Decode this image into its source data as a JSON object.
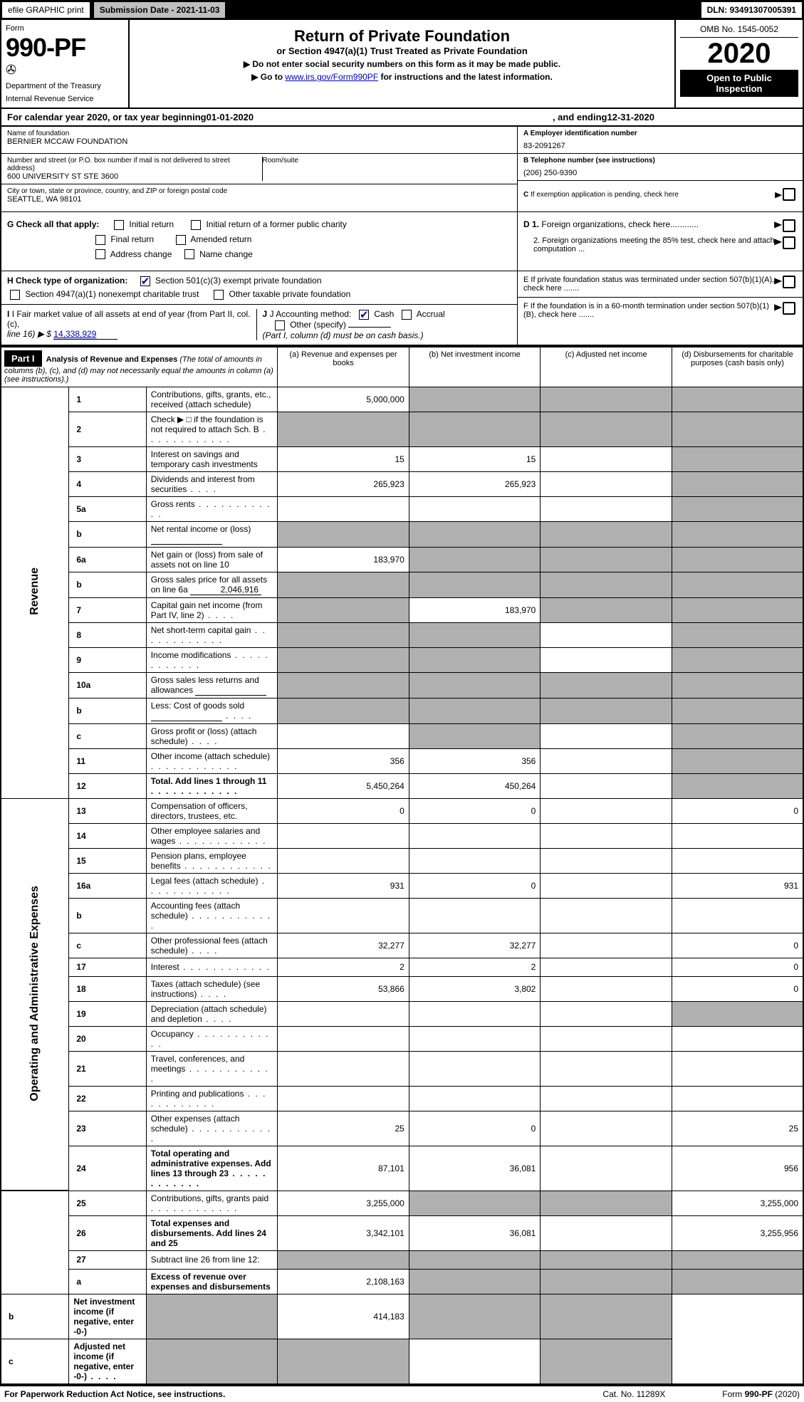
{
  "top": {
    "efile": "efile GRAPHIC print",
    "subdate_label": "Submission Date - ",
    "subdate": "2021-11-03",
    "dln_label": "DLN: ",
    "dln": "93491307005391"
  },
  "header": {
    "form_label": "Form",
    "form_num": "990-PF",
    "dept1": "Department of the Treasury",
    "dept2": "Internal Revenue Service",
    "title": "Return of Private Foundation",
    "subtitle": "or Section 4947(a)(1) Trust Treated as Private Foundation",
    "instr1a": "▶ Do not enter social security numbers on this form as it may be made public.",
    "instr2a": "▶ Go to ",
    "instr2link": "www.irs.gov/Form990PF",
    "instr2b": " for instructions and the latest information.",
    "omb": "OMB No. 1545-0052",
    "year": "2020",
    "open": "Open to Public Inspection"
  },
  "calyear": {
    "text1": "For calendar year 2020, or tax year beginning ",
    "begin": "01-01-2020",
    "text2": ", and ending ",
    "end": "12-31-2020"
  },
  "name": {
    "label": "Name of foundation",
    "value": "BERNIER MCCAW FOUNDATION",
    "street_label": "Number and street (or P.O. box number if mail is not delivered to street address)",
    "street": "600 UNIVERSITY ST STE 3600",
    "room_label": "Room/suite",
    "room": "",
    "city_label": "City or town, state or province, country, and ZIP or foreign postal code",
    "city": "SEATTLE, WA  98101",
    "a_label": "A Employer identification number",
    "a_value": "83-2091267",
    "b_label": "B Telephone number (see instructions)",
    "b_value": "(206) 250-9390",
    "c_label": "C If exemption application is pending, check here"
  },
  "checks": {
    "g_label": "G Check all that apply:",
    "g_initial": "Initial return",
    "g_initial_pub": "Initial return of a former public charity",
    "g_final": "Final return",
    "g_amended": "Amended return",
    "g_address": "Address change",
    "g_name": "Name change",
    "h_label": "H Check type of organization:",
    "h_501c3": "Section 501(c)(3) exempt private foundation",
    "h_4947": "Section 4947(a)(1) nonexempt charitable trust",
    "h_other": "Other taxable private foundation",
    "i_label": "I Fair market value of all assets at end of year (from Part II, col. (c),",
    "i_line": "line 16) ▶ $",
    "i_value": "14,338,929",
    "j_label": "J Accounting method:",
    "j_cash": "Cash",
    "j_accrual": "Accrual",
    "j_other": "Other (specify)",
    "j_note": "(Part I, column (d) must be on cash basis.)",
    "d1": "D 1. Foreign organizations, check here............",
    "d2": "2. Foreign organizations meeting the 85% test, check here and attach computation ...",
    "e": "E  If private foundation status was terminated under section 507(b)(1)(A), check here .......",
    "f": "F  If the foundation is in a 60-month termination under section 507(b)(1)(B), check here .......",
    "arrow": "▶"
  },
  "part1": {
    "label": "Part I",
    "title": "Analysis of Revenue and Expenses",
    "desc": "(The total of amounts in columns (b), (c), and (d) may not necessarily equal the amounts in column (a) (see instructions).)",
    "col_a": "(a) Revenue and expenses per books",
    "col_b": "(b) Net investment income",
    "col_c": "(c) Adjusted net income",
    "col_d": "(d) Disbursements for charitable purposes (cash basis only)",
    "vert_rev": "Revenue",
    "vert_exp": "Operating and Administrative Expenses"
  },
  "rows": [
    {
      "n": "1",
      "t": "Contributions, gifts, grants, etc., received (attach schedule)",
      "a": "5,000,000",
      "b": "gray",
      "c": "gray",
      "d": "gray"
    },
    {
      "n": "2",
      "t": "Check ▶ □ if the foundation is not required to attach Sch. B",
      "a": "gray",
      "b": "gray",
      "c": "gray",
      "d": "gray",
      "dots": true
    },
    {
      "n": "3",
      "t": "Interest on savings and temporary cash investments",
      "a": "15",
      "b": "15",
      "c": "",
      "d": "gray"
    },
    {
      "n": "4",
      "t": "Dividends and interest from securities",
      "a": "265,923",
      "b": "265,923",
      "c": "",
      "d": "gray",
      "dots": "short"
    },
    {
      "n": "5a",
      "t": "Gross rents",
      "a": "",
      "b": "",
      "c": "",
      "d": "gray",
      "dots": true
    },
    {
      "n": "b",
      "t": "Net rental income or (loss)",
      "a": "gray",
      "b": "gray",
      "c": "gray",
      "d": "gray",
      "inline": true
    },
    {
      "n": "6a",
      "t": "Net gain or (loss) from sale of assets not on line 10",
      "a": "183,970",
      "b": "gray",
      "c": "gray",
      "d": "gray"
    },
    {
      "n": "b",
      "t": "Gross sales price for all assets on line 6a",
      "a": "gray",
      "b": "gray",
      "c": "gray",
      "d": "gray",
      "inline_val": "2,046,916"
    },
    {
      "n": "7",
      "t": "Capital gain net income (from Part IV, line 2)",
      "a": "gray",
      "b": "183,970",
      "c": "gray",
      "d": "gray",
      "dots": "short"
    },
    {
      "n": "8",
      "t": "Net short-term capital gain",
      "a": "gray",
      "b": "gray",
      "c": "",
      "d": "gray",
      "dots": true
    },
    {
      "n": "9",
      "t": "Income modifications",
      "a": "gray",
      "b": "gray",
      "c": "",
      "d": "gray",
      "dots": true
    },
    {
      "n": "10a",
      "t": "Gross sales less returns and allowances",
      "a": "gray",
      "b": "gray",
      "c": "gray",
      "d": "gray",
      "inline": true
    },
    {
      "n": "b",
      "t": "Less: Cost of goods sold",
      "a": "gray",
      "b": "gray",
      "c": "gray",
      "d": "gray",
      "inline": true,
      "dots": "short"
    },
    {
      "n": "c",
      "t": "Gross profit or (loss) (attach schedule)",
      "a": "",
      "b": "gray",
      "c": "",
      "d": "gray",
      "dots": "short"
    },
    {
      "n": "11",
      "t": "Other income (attach schedule)",
      "a": "356",
      "b": "356",
      "c": "",
      "d": "gray",
      "dots": true
    },
    {
      "n": "12",
      "t": "Total. Add lines 1 through 11",
      "a": "5,450,264",
      "b": "450,264",
      "c": "",
      "d": "gray",
      "bold": true,
      "dots": true
    },
    {
      "n": "13",
      "t": "Compensation of officers, directors, trustees, etc.",
      "a": "0",
      "b": "0",
      "c": "",
      "d": "0"
    },
    {
      "n": "14",
      "t": "Other employee salaries and wages",
      "a": "",
      "b": "",
      "c": "",
      "d": "",
      "dots": true
    },
    {
      "n": "15",
      "t": "Pension plans, employee benefits",
      "a": "",
      "b": "",
      "c": "",
      "d": "",
      "dots": true
    },
    {
      "n": "16a",
      "t": "Legal fees (attach schedule)",
      "a": "931",
      "b": "0",
      "c": "",
      "d": "931",
      "dots": true
    },
    {
      "n": "b",
      "t": "Accounting fees (attach schedule)",
      "a": "",
      "b": "",
      "c": "",
      "d": "",
      "dots": true
    },
    {
      "n": "c",
      "t": "Other professional fees (attach schedule)",
      "a": "32,277",
      "b": "32,277",
      "c": "",
      "d": "0",
      "dots": "short"
    },
    {
      "n": "17",
      "t": "Interest",
      "a": "2",
      "b": "2",
      "c": "",
      "d": "0",
      "dots": true
    },
    {
      "n": "18",
      "t": "Taxes (attach schedule) (see instructions)",
      "a": "53,866",
      "b": "3,802",
      "c": "",
      "d": "0",
      "dots": "short"
    },
    {
      "n": "19",
      "t": "Depreciation (attach schedule) and depletion",
      "a": "",
      "b": "",
      "c": "",
      "d": "gray",
      "dots": "short"
    },
    {
      "n": "20",
      "t": "Occupancy",
      "a": "",
      "b": "",
      "c": "",
      "d": "",
      "dots": true
    },
    {
      "n": "21",
      "t": "Travel, conferences, and meetings",
      "a": "",
      "b": "",
      "c": "",
      "d": "",
      "dots": true
    },
    {
      "n": "22",
      "t": "Printing and publications",
      "a": "",
      "b": "",
      "c": "",
      "d": "",
      "dots": true
    },
    {
      "n": "23",
      "t": "Other expenses (attach schedule)",
      "a": "25",
      "b": "0",
      "c": "",
      "d": "25",
      "dots": true
    },
    {
      "n": "24",
      "t": "Total operating and administrative expenses. Add lines 13 through 23",
      "a": "87,101",
      "b": "36,081",
      "c": "",
      "d": "956",
      "bold": true,
      "dots": true,
      "tall": true
    },
    {
      "n": "25",
      "t": "Contributions, gifts, grants paid",
      "a": "3,255,000",
      "b": "gray",
      "c": "gray",
      "d": "3,255,000",
      "dots": true
    },
    {
      "n": "26",
      "t": "Total expenses and disbursements. Add lines 24 and 25",
      "a": "3,342,101",
      "b": "36,081",
      "c": "",
      "d": "3,255,956",
      "bold": true,
      "tall": true
    },
    {
      "n": "27",
      "t": "Subtract line 26 from line 12:",
      "a": "gray",
      "b": "gray",
      "c": "gray",
      "d": "gray"
    },
    {
      "n": "a",
      "t": "Excess of revenue over expenses and disbursements",
      "a": "2,108,163",
      "b": "gray",
      "c": "gray",
      "d": "gray",
      "bold": true
    },
    {
      "n": "b",
      "t": "Net investment income (if negative, enter -0-)",
      "a": "gray",
      "b": "414,183",
      "c": "gray",
      "d": "gray",
      "bold": true
    },
    {
      "n": "c",
      "t": "Adjusted net income (if negative, enter -0-)",
      "a": "gray",
      "b": "gray",
      "c": "",
      "d": "gray",
      "bold": true,
      "dots": "short"
    }
  ],
  "footer": {
    "left": "For Paperwork Reduction Act Notice, see instructions.",
    "mid": "Cat. No. 11289X",
    "right": "Form 990-PF (2020)"
  }
}
